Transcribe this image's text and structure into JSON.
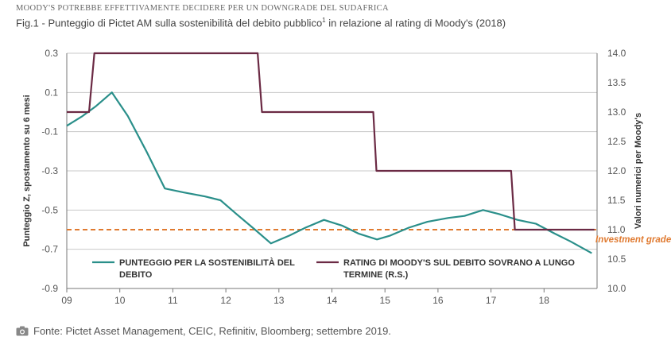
{
  "header": {
    "supertitle": "MOODY'S POTREBBE EFFETTIVAMENTE DECIDERE PER UN DOWNGRADE DEL SUDAFRICA",
    "title_main": "Fig.1 - Punteggio di Pictet AM sulla sostenibilità del debito pubblico",
    "title_sup": "1",
    "title_tail": " in relazione al rating di Moody's (2018)"
  },
  "footer": {
    "source": "Fonte: Pictet Asset Management, CEIC, Refinitiv, Bloomberg; settembre 2019.",
    "icon": "camera-icon"
  },
  "chart_data": {
    "type": "line",
    "x_tick_labels": [
      "09",
      "10",
      "11",
      "12",
      "13",
      "14",
      "15",
      "16",
      "17",
      "18"
    ],
    "x_tick_values": [
      2009,
      2010,
      2011,
      2012,
      2013,
      2014,
      2015,
      2016,
      2017,
      2018
    ],
    "xlim": [
      2009,
      2019
    ],
    "ylabel_left": "Punteggio Z, spostamento su 6 mesi",
    "ylabel_right": "Valori numerici per Moody's",
    "ylim_left": [
      -0.9,
      0.3
    ],
    "ylim_right": [
      10.0,
      14.0
    ],
    "left_ticks": [
      {
        "v": 0.3,
        "label": "0.3"
      },
      {
        "v": 0.1,
        "label": "0.1"
      },
      {
        "v": -0.1,
        "label": "-0.1"
      },
      {
        "v": -0.3,
        "label": "-0.3"
      },
      {
        "v": -0.5,
        "label": "-0.5"
      },
      {
        "v": -0.7,
        "label": "-0.7"
      },
      {
        "v": -0.9,
        "label": "-0.9"
      }
    ],
    "right_ticks": [
      {
        "v": 14.0,
        "label": "14.0"
      },
      {
        "v": 13.5,
        "label": "13.5"
      },
      {
        "v": 13.0,
        "label": "13.0"
      },
      {
        "v": 12.5,
        "label": "12.5"
      },
      {
        "v": 12.0,
        "label": "12.0"
      },
      {
        "v": 11.5,
        "label": "11.5"
      },
      {
        "v": 11.0,
        "label": "11.0"
      },
      {
        "v": 10.5,
        "label": "10.5"
      },
      {
        "v": 10.0,
        "label": "10.0"
      }
    ],
    "grid": "horizontal",
    "series": [
      {
        "name": "PUNTEGGIO PER LA SOSTENIBILITÀ DEL DEBITO",
        "axis": "left",
        "color": "#2a8f8a",
        "points": [
          [
            2009.0,
            -0.07
          ],
          [
            2009.3,
            -0.02
          ],
          [
            2009.55,
            0.03
          ],
          [
            2009.85,
            0.1
          ],
          [
            2010.15,
            -0.02
          ],
          [
            2010.5,
            -0.2
          ],
          [
            2010.85,
            -0.39
          ],
          [
            2011.2,
            -0.41
          ],
          [
            2011.6,
            -0.43
          ],
          [
            2011.9,
            -0.45
          ],
          [
            2012.2,
            -0.52
          ],
          [
            2012.55,
            -0.6
          ],
          [
            2012.85,
            -0.67
          ],
          [
            2013.2,
            -0.63
          ],
          [
            2013.5,
            -0.59
          ],
          [
            2013.85,
            -0.55
          ],
          [
            2014.2,
            -0.58
          ],
          [
            2014.5,
            -0.62
          ],
          [
            2014.85,
            -0.65
          ],
          [
            2015.1,
            -0.63
          ],
          [
            2015.45,
            -0.59
          ],
          [
            2015.8,
            -0.56
          ],
          [
            2016.2,
            -0.54
          ],
          [
            2016.5,
            -0.53
          ],
          [
            2016.85,
            -0.5
          ],
          [
            2017.15,
            -0.52
          ],
          [
            2017.5,
            -0.55
          ],
          [
            2017.85,
            -0.57
          ],
          [
            2018.2,
            -0.62
          ],
          [
            2018.5,
            -0.66
          ],
          [
            2018.9,
            -0.72
          ]
        ]
      },
      {
        "name": "RATING DI MOODY'S SUL DEBITO SOVRANO A LUNGO TERMINE (R.S.)",
        "axis": "right",
        "color": "#6b2a44",
        "points": [
          [
            2009.0,
            13.0
          ],
          [
            2009.42,
            13.0
          ],
          [
            2009.52,
            14.0
          ],
          [
            2012.6,
            14.0
          ],
          [
            2012.68,
            13.0
          ],
          [
            2014.78,
            13.0
          ],
          [
            2014.84,
            12.0
          ],
          [
            2017.38,
            12.0
          ],
          [
            2017.45,
            11.0
          ],
          [
            2018.95,
            11.0
          ]
        ]
      }
    ],
    "reference_line": {
      "axis": "right",
      "value": 11.0,
      "label": "Investment grade",
      "color": "#e07a30"
    },
    "legend_position": "bottom-left"
  }
}
